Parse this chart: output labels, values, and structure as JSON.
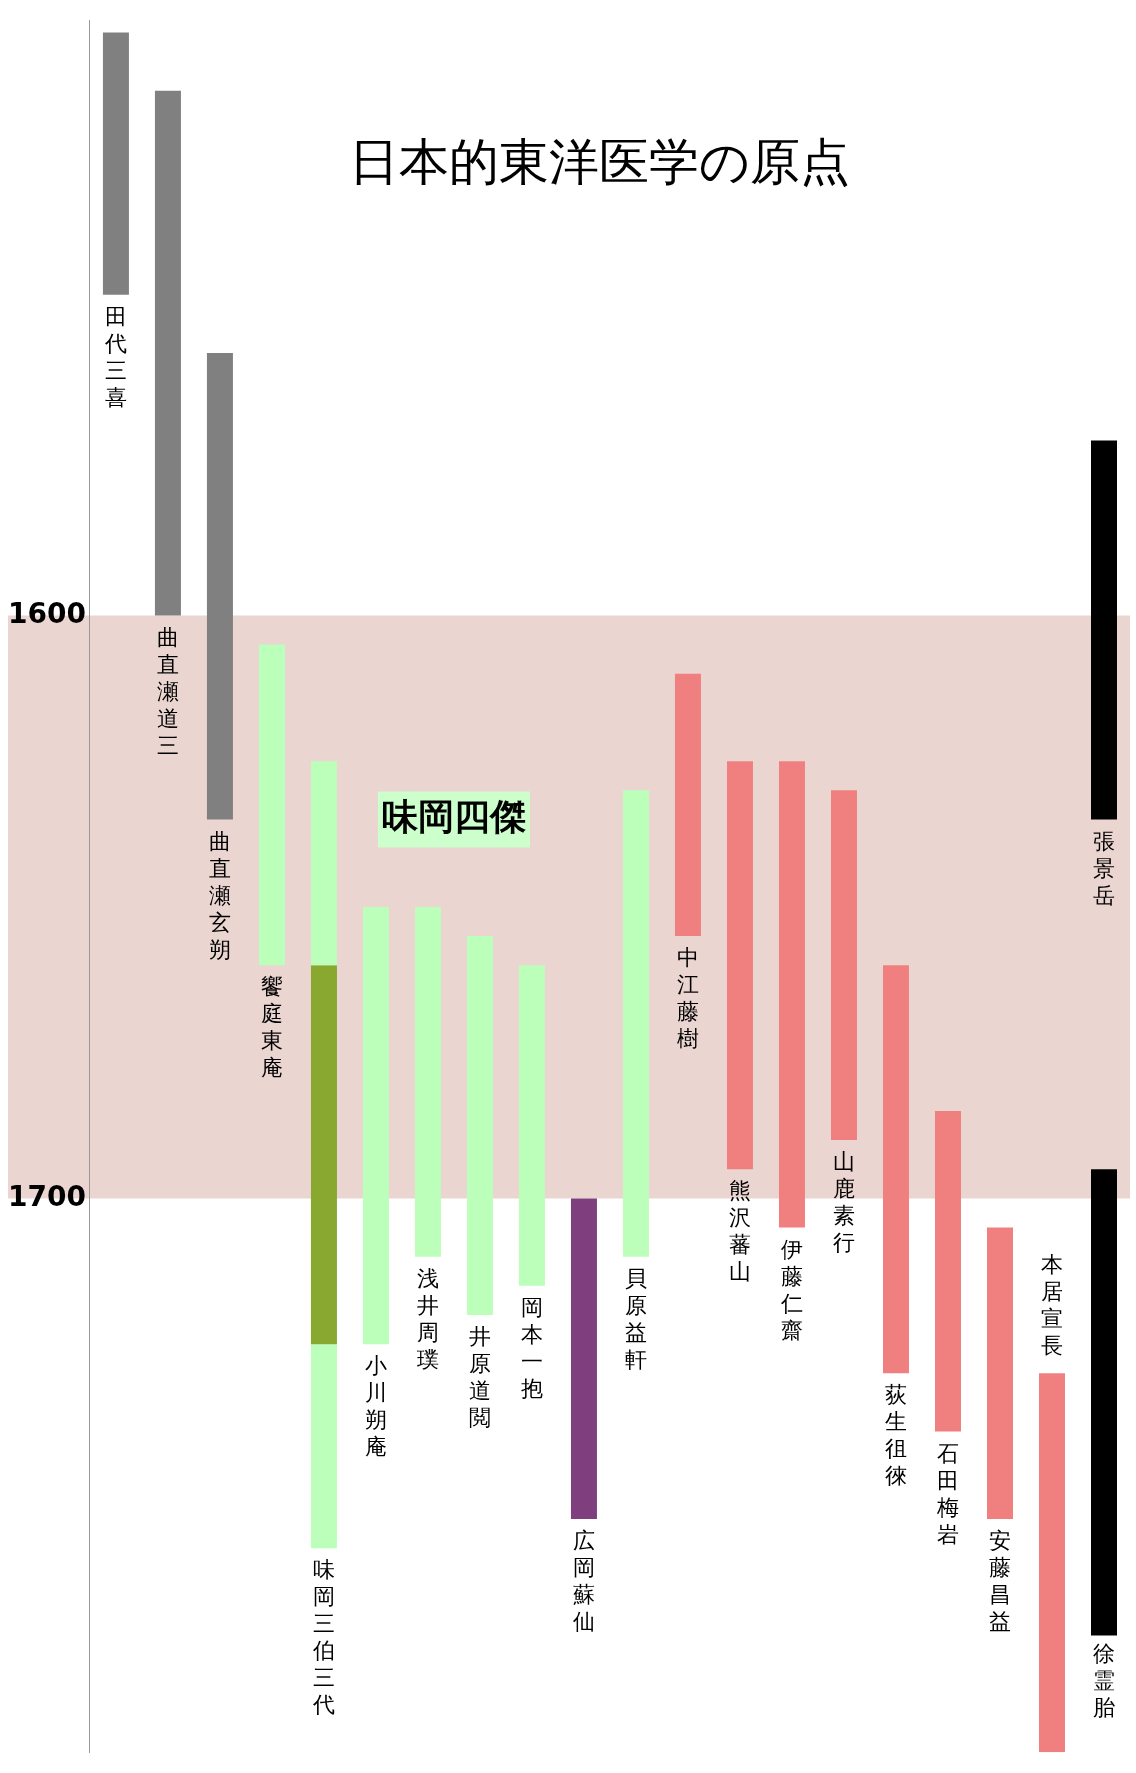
{
  "chart_data": {
    "type": "bar",
    "title": "日本的東洋医学の原点",
    "categories": [
      "田代三喜",
      "曲直瀬道三",
      "曲直瀬玄朔",
      "饗庭東庵",
      "味岡三伯三代",
      "小川朔庵",
      "浅井周璞",
      "井原道閲",
      "岡本一抱",
      "広岡蘇仙",
      "貝原益軒",
      "中江藤樹",
      "熊沢蕃山",
      "伊藤仁齋",
      "山鹿素行",
      "荻生徂徠",
      "石田梅岩",
      "安藤昌益",
      "本居宣長",
      "張景岳"
    ],
    "series": [
      {
        "base": [
          1500,
          1510,
          1555,
          1605,
          1625,
          1650,
          1650,
          1655,
          1660,
          1700,
          1630,
          1610,
          1625,
          1625,
          1630,
          1660,
          1685,
          1705,
          1730,
          1570
        ],
        "values": [
          45,
          90,
          80,
          55,
          35,
          75,
          60,
          65,
          55,
          55,
          80,
          45,
          70,
          80,
          60,
          70,
          55,
          50,
          65,
          65
        ],
        "colors": [
          "#808080",
          "#808080",
          "#808080",
          "#bbffbb",
          "#bbffbb",
          "#bbffbb",
          "#bbffbb",
          "#bbffbb",
          "#bbffbb",
          "#7f3f7f",
          "#bbffbb",
          "#f08080",
          "#f08080",
          "#f08080",
          "#f08080",
          "#f08080",
          "#f08080",
          "#f08080",
          "#f08080",
          "#000000"
        ]
      },
      {
        "base": [
          null,
          null,
          null,
          null,
          1660,
          null,
          null,
          null,
          null,
          null,
          null,
          null,
          null,
          null,
          null,
          null,
          null,
          null,
          null,
          null
        ],
        "values": [
          null,
          null,
          null,
          null,
          65,
          null,
          null,
          null,
          null,
          null,
          null,
          null,
          null,
          null,
          null,
          null,
          null,
          null,
          null,
          null
        ],
        "color": "#88a830"
      },
      {
        "base": [
          null,
          null,
          null,
          null,
          1725,
          null,
          null,
          null,
          null,
          null,
          null,
          null,
          null,
          null,
          null,
          null,
          null,
          null,
          null,
          null
        ],
        "values": [
          null,
          null,
          null,
          null,
          35,
          null,
          null,
          null,
          null,
          null,
          null,
          null,
          null,
          null,
          null,
          null,
          null,
          null,
          null,
          null
        ],
        "color": "#bbffbb"
      },
      {
        "name": "徐霊胎",
        "base": [
          null,
          null,
          null,
          null,
          null,
          null,
          null,
          null,
          null,
          null,
          null,
          null,
          null,
          null,
          null,
          null,
          null,
          null,
          null,
          1695
        ],
        "values": [
          null,
          null,
          null,
          null,
          null,
          null,
          null,
          null,
          null,
          null,
          null,
          null,
          null,
          null,
          null,
          null,
          null,
          null,
          null,
          80
        ],
        "color": "#000000"
      }
    ],
    "ylim": [
      1795,
      1498
    ],
    "yticks": [
      1600,
      1700
    ],
    "bands": [
      {
        "axis": "y",
        "from": 1600,
        "to": 1700,
        "color": "#ebd5d0"
      }
    ],
    "annotations": [
      "味岡四傑"
    ],
    "legend": false,
    "grid": false
  }
}
